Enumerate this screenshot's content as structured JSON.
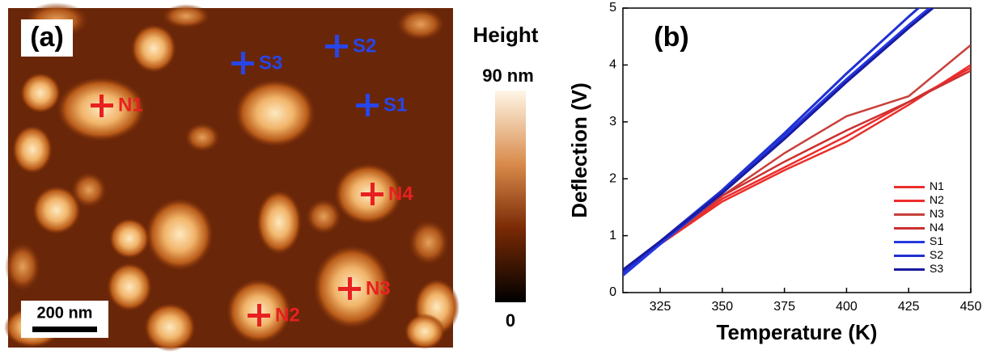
{
  "panel_a": {
    "label": "(a)",
    "colorbar_title": "Height",
    "colorbar_max": "90 nm",
    "colorbar_min": "0",
    "scale_bar": "200 nm",
    "markers": [
      {
        "label": "N1"
      },
      {
        "label": "N2"
      },
      {
        "label": "N3"
      },
      {
        "label": "N4"
      },
      {
        "label": "S1"
      },
      {
        "label": "S2"
      },
      {
        "label": "S3"
      }
    ]
  },
  "chart_data": {
    "type": "line",
    "panel_label": "(b)",
    "x_label": "Temperature (K)",
    "y_label": "Deflection (V)",
    "x": [
      310,
      325,
      350,
      375,
      400,
      425,
      450
    ],
    "series": [
      {
        "name": "N1",
        "color": "#e8302a",
        "values": [
          0.3,
          0.85,
          1.6,
          2.15,
          2.65,
          3.3,
          4.0
        ]
      },
      {
        "name": "N2",
        "color": "#ee2b2b",
        "values": [
          0.35,
          0.85,
          1.65,
          2.2,
          2.75,
          3.35,
          3.95
        ]
      },
      {
        "name": "N3",
        "color": "#c8403a",
        "values": [
          0.35,
          0.85,
          1.7,
          2.45,
          3.1,
          3.45,
          4.35
        ]
      },
      {
        "name": "N4",
        "color": "#cc3030",
        "values": [
          0.35,
          0.9,
          1.7,
          2.3,
          2.85,
          3.35,
          3.9
        ]
      },
      {
        "name": "S1",
        "color": "#2438e0",
        "values": [
          0.3,
          0.85,
          1.75,
          2.75,
          3.75,
          4.7,
          5.6
        ]
      },
      {
        "name": "S2",
        "color": "#2030d0",
        "values": [
          0.35,
          0.9,
          1.8,
          2.8,
          3.85,
          4.85,
          5.8
        ]
      },
      {
        "name": "S3",
        "color": "#1a1aa0",
        "values": [
          0.4,
          0.9,
          1.75,
          2.7,
          3.7,
          4.65,
          5.55
        ]
      }
    ],
    "xlim": [
      310,
      450
    ],
    "xticks": [
      325,
      350,
      375,
      400,
      425,
      450
    ],
    "ylim": [
      0,
      5
    ],
    "yticks": [
      0,
      1,
      2,
      3,
      4,
      5
    ],
    "legend": "lower right"
  }
}
